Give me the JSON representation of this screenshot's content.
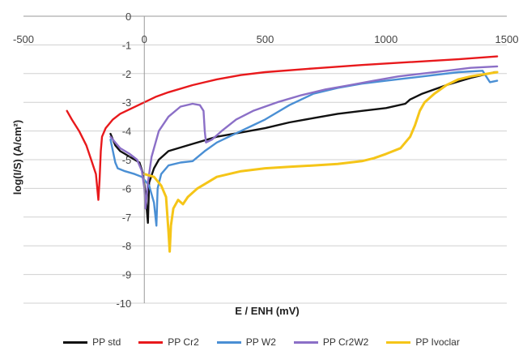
{
  "chart_data": {
    "type": "line",
    "xlabel": "E / ENH (mV)",
    "ylabel": "log(I/S) (A/cm²)",
    "xlim": [
      -500,
      1500
    ],
    "ylim": [
      -10,
      0
    ],
    "x_ticks": [
      -500,
      0,
      500,
      1000,
      1500
    ],
    "y_ticks": [
      0,
      -1,
      -2,
      -3,
      -4,
      -5,
      -6,
      -7,
      -8,
      -9,
      -10
    ],
    "x_tick_labels": [
      "-500",
      "0",
      "500",
      "1000",
      "1500"
    ],
    "y_tick_labels": [
      "0",
      "-1",
      "-2",
      "-3",
      "-4",
      "-5",
      "-6",
      "-7",
      "-8",
      "-9",
      "-10"
    ],
    "grid": "horizontal",
    "legend_position": "bottom",
    "series": [
      {
        "name": "PP std",
        "color": "#111111",
        "points": [
          [
            -140,
            -4.1
          ],
          [
            -120,
            -4.5
          ],
          [
            -100,
            -4.7
          ],
          [
            -80,
            -4.8
          ],
          [
            -60,
            -4.9
          ],
          [
            -40,
            -5.0
          ],
          [
            -20,
            -5.1
          ],
          [
            -5,
            -5.5
          ],
          [
            5,
            -6.2
          ],
          [
            15,
            -7.2
          ],
          [
            20,
            -5.8
          ],
          [
            40,
            -5.3
          ],
          [
            60,
            -5.0
          ],
          [
            100,
            -4.7
          ],
          [
            200,
            -4.45
          ],
          [
            300,
            -4.2
          ],
          [
            400,
            -4.05
          ],
          [
            500,
            -3.9
          ],
          [
            600,
            -3.7
          ],
          [
            700,
            -3.55
          ],
          [
            800,
            -3.4
          ],
          [
            900,
            -3.3
          ],
          [
            1000,
            -3.2
          ],
          [
            1080,
            -3.05
          ],
          [
            1100,
            -2.9
          ],
          [
            1150,
            -2.7
          ],
          [
            1250,
            -2.4
          ],
          [
            1350,
            -2.15
          ],
          [
            1450,
            -1.95
          ]
        ]
      },
      {
        "name": "PP Cr2",
        "color": "#e8191c",
        "points": [
          [
            -320,
            -3.3
          ],
          [
            -300,
            -3.6
          ],
          [
            -270,
            -4.0
          ],
          [
            -240,
            -4.5
          ],
          [
            -220,
            -5.0
          ],
          [
            -200,
            -5.5
          ],
          [
            -190,
            -6.4
          ],
          [
            -185,
            -5.7
          ],
          [
            -180,
            -4.7
          ],
          [
            -175,
            -4.2
          ],
          [
            -160,
            -3.9
          ],
          [
            -130,
            -3.6
          ],
          [
            -100,
            -3.4
          ],
          [
            -50,
            -3.2
          ],
          [
            0,
            -3.0
          ],
          [
            50,
            -2.8
          ],
          [
            100,
            -2.65
          ],
          [
            200,
            -2.4
          ],
          [
            300,
            -2.2
          ],
          [
            400,
            -2.05
          ],
          [
            500,
            -1.95
          ],
          [
            700,
            -1.82
          ],
          [
            900,
            -1.7
          ],
          [
            1100,
            -1.6
          ],
          [
            1300,
            -1.5
          ],
          [
            1460,
            -1.4
          ]
        ]
      },
      {
        "name": "PP W2",
        "color": "#4a8fd4",
        "points": [
          [
            -140,
            -4.3
          ],
          [
            -120,
            -5.1
          ],
          [
            -110,
            -5.3
          ],
          [
            -80,
            -5.4
          ],
          [
            -40,
            -5.5
          ],
          [
            -10,
            -5.6
          ],
          [
            20,
            -5.9
          ],
          [
            40,
            -6.5
          ],
          [
            50,
            -7.3
          ],
          [
            55,
            -6.0
          ],
          [
            70,
            -5.5
          ],
          [
            100,
            -5.2
          ],
          [
            150,
            -5.1
          ],
          [
            200,
            -5.05
          ],
          [
            250,
            -4.7
          ],
          [
            300,
            -4.4
          ],
          [
            350,
            -4.2
          ],
          [
            400,
            -4.0
          ],
          [
            450,
            -3.8
          ],
          [
            500,
            -3.6
          ],
          [
            600,
            -3.1
          ],
          [
            700,
            -2.7
          ],
          [
            800,
            -2.5
          ],
          [
            900,
            -2.35
          ],
          [
            1000,
            -2.25
          ],
          [
            1100,
            -2.15
          ],
          [
            1200,
            -2.05
          ],
          [
            1300,
            -1.95
          ],
          [
            1400,
            -1.9
          ],
          [
            1430,
            -2.3
          ],
          [
            1460,
            -2.25
          ]
        ]
      },
      {
        "name": "PP Cr2W2",
        "color": "#8b6fc7",
        "points": [
          [
            -140,
            -4.2
          ],
          [
            -120,
            -4.4
          ],
          [
            -100,
            -4.6
          ],
          [
            -60,
            -4.8
          ],
          [
            -30,
            -5.0
          ],
          [
            -10,
            -5.4
          ],
          [
            0,
            -6.0
          ],
          [
            5,
            -6.7
          ],
          [
            15,
            -5.8
          ],
          [
            30,
            -4.9
          ],
          [
            60,
            -4.0
          ],
          [
            100,
            -3.5
          ],
          [
            150,
            -3.15
          ],
          [
            200,
            -3.05
          ],
          [
            230,
            -3.1
          ],
          [
            245,
            -3.3
          ],
          [
            250,
            -4.0
          ],
          [
            255,
            -4.4
          ],
          [
            280,
            -4.3
          ],
          [
            320,
            -4.0
          ],
          [
            380,
            -3.6
          ],
          [
            450,
            -3.3
          ],
          [
            550,
            -3.0
          ],
          [
            650,
            -2.75
          ],
          [
            750,
            -2.55
          ],
          [
            850,
            -2.4
          ],
          [
            950,
            -2.25
          ],
          [
            1050,
            -2.1
          ],
          [
            1150,
            -2.0
          ],
          [
            1250,
            -1.9
          ],
          [
            1350,
            -1.8
          ],
          [
            1460,
            -1.75
          ]
        ]
      },
      {
        "name": "PP Ivoclar",
        "color": "#f5c518",
        "points": [
          [
            0,
            -5.5
          ],
          [
            40,
            -5.6
          ],
          [
            70,
            -5.9
          ],
          [
            90,
            -6.3
          ],
          [
            100,
            -7.5
          ],
          [
            105,
            -8.2
          ],
          [
            110,
            -7.3
          ],
          [
            120,
            -6.7
          ],
          [
            140,
            -6.4
          ],
          [
            160,
            -6.55
          ],
          [
            180,
            -6.3
          ],
          [
            220,
            -6.0
          ],
          [
            260,
            -5.8
          ],
          [
            300,
            -5.6
          ],
          [
            350,
            -5.5
          ],
          [
            400,
            -5.4
          ],
          [
            500,
            -5.3
          ],
          [
            600,
            -5.25
          ],
          [
            700,
            -5.2
          ],
          [
            800,
            -5.15
          ],
          [
            900,
            -5.05
          ],
          [
            950,
            -4.95
          ],
          [
            1000,
            -4.8
          ],
          [
            1060,
            -4.6
          ],
          [
            1080,
            -4.4
          ],
          [
            1100,
            -4.2
          ],
          [
            1120,
            -3.8
          ],
          [
            1140,
            -3.3
          ],
          [
            1160,
            -3.0
          ],
          [
            1200,
            -2.7
          ],
          [
            1250,
            -2.4
          ],
          [
            1300,
            -2.2
          ],
          [
            1350,
            -2.1
          ],
          [
            1460,
            -1.95
          ]
        ]
      }
    ]
  }
}
